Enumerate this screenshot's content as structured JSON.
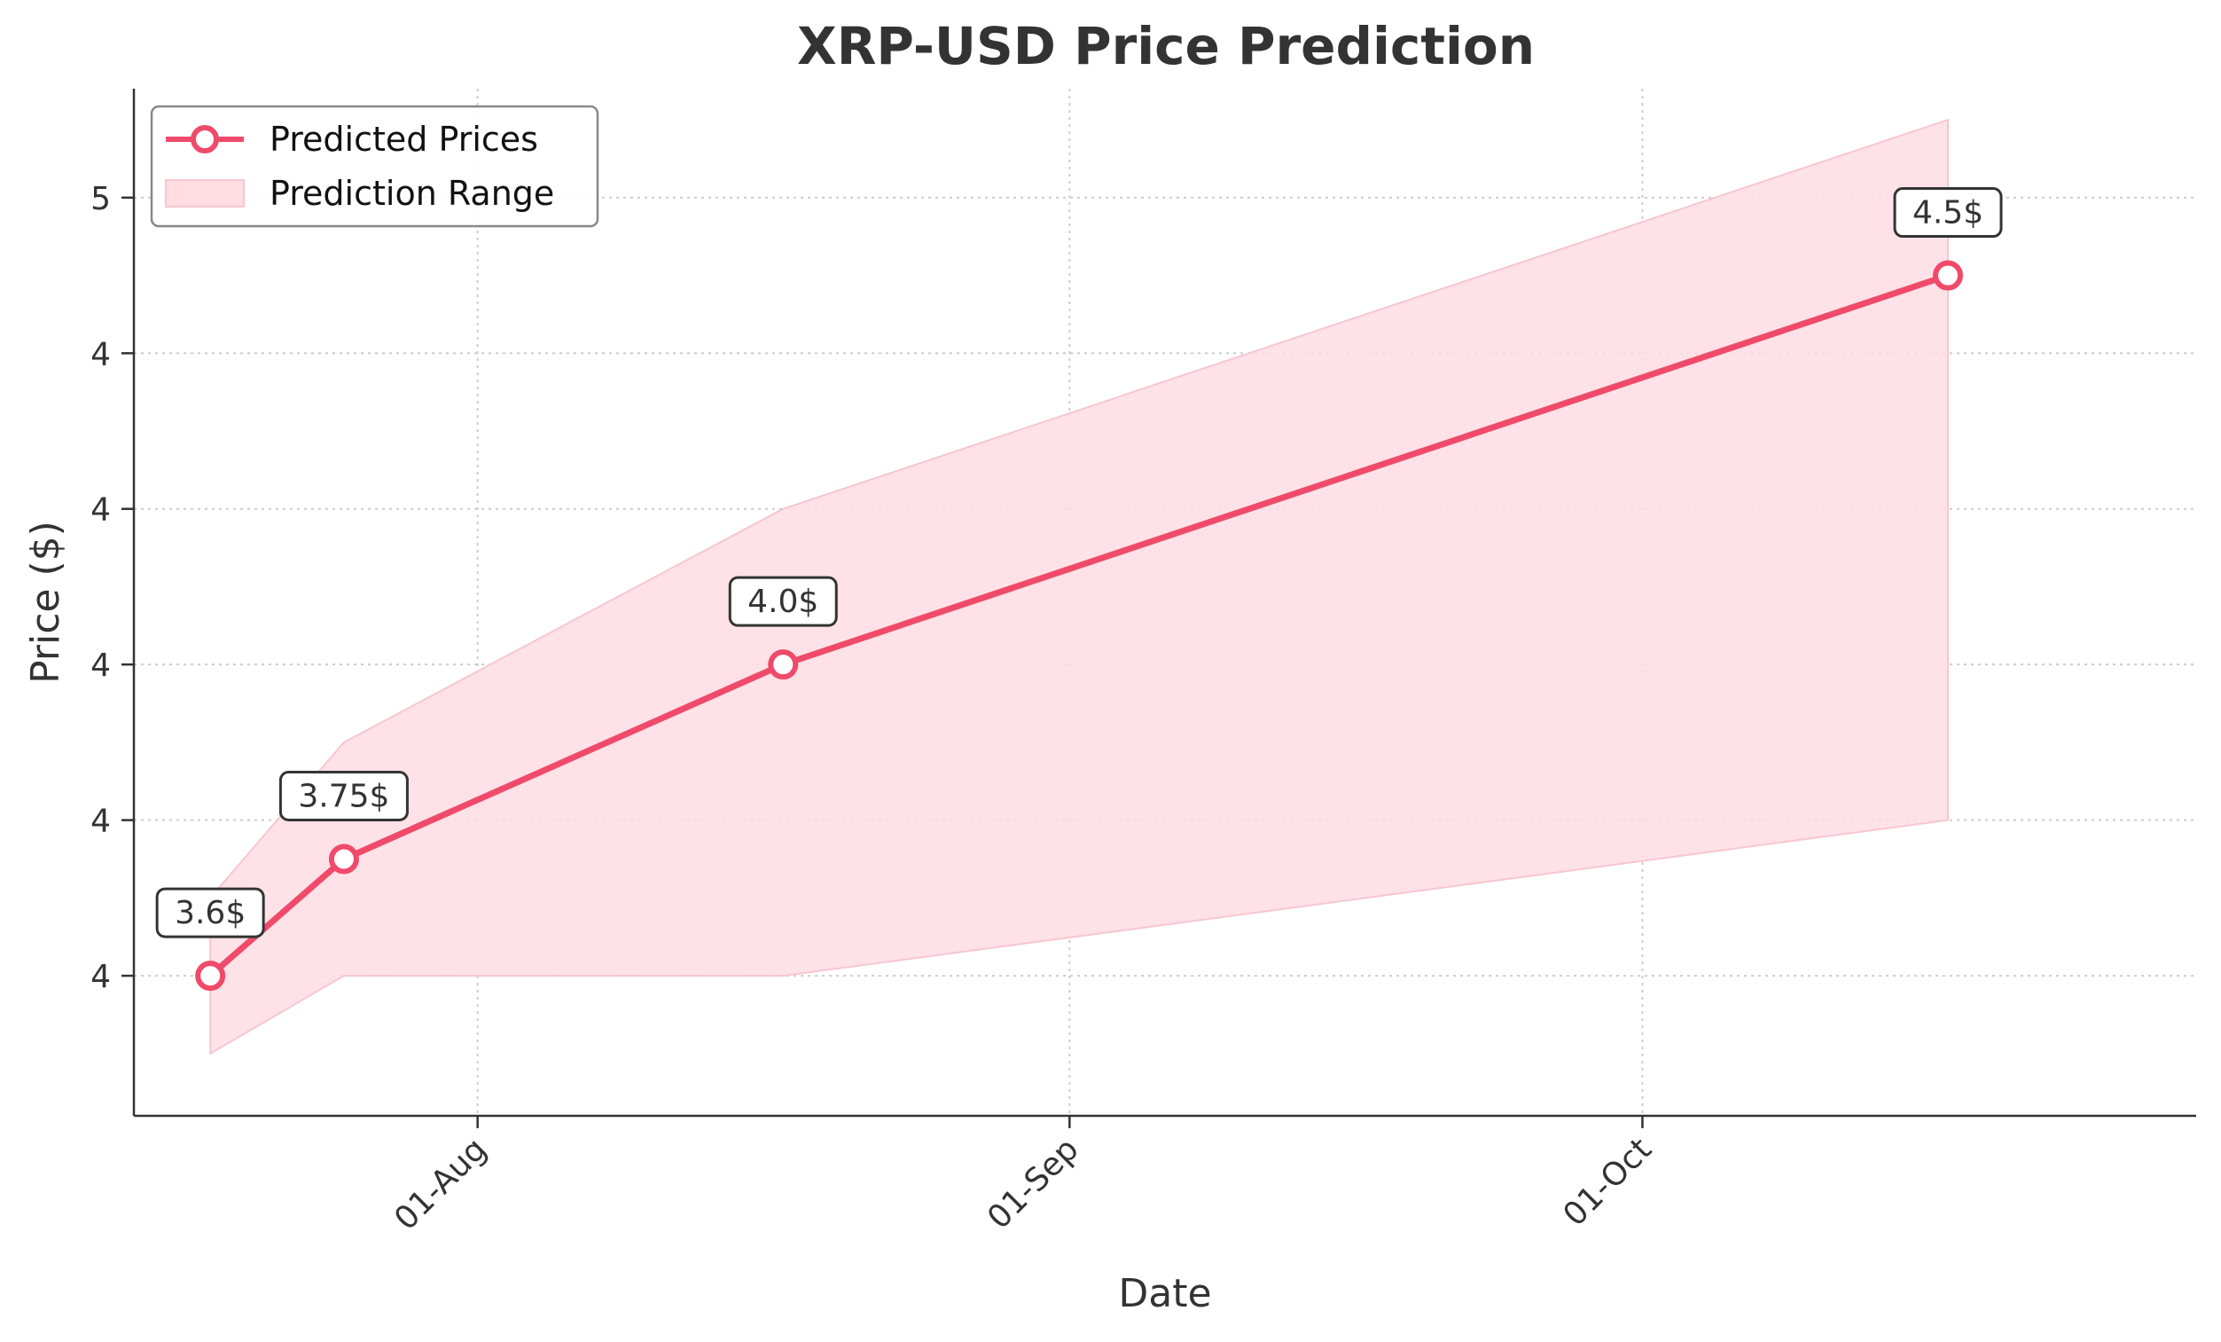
{
  "chart_data": {
    "type": "line",
    "title": "XRP-USD Price Prediction",
    "xlabel": "Date",
    "ylabel": "Price ($)",
    "x_tick_labels": [
      "01-Aug",
      "01-Sep",
      "01-Oct"
    ],
    "x_tick_dates": [
      "2024-08-01",
      "2024-09-01",
      "2024-10-01"
    ],
    "y_tick_labels": [
      "4",
      "4",
      "4",
      "4",
      "4",
      "5"
    ],
    "y_tick_values": [
      3.6,
      3.8,
      4.0,
      4.2,
      4.4,
      4.6
    ],
    "xlim": [
      "2024-07-14",
      "2024-10-30"
    ],
    "ylim": [
      3.42,
      4.74
    ],
    "grid": true,
    "legend_position": "top-left",
    "series": [
      {
        "name": "Predicted Prices",
        "type": "line",
        "color": "#f04a6a",
        "x": [
          "2024-07-18",
          "2024-07-25",
          "2024-08-17",
          "2024-10-17"
        ],
        "y": [
          3.6,
          3.75,
          4.0,
          4.5
        ],
        "labels": [
          "3.6$",
          "3.75$",
          "4.0$",
          "4.5$"
        ]
      },
      {
        "name": "Prediction Range",
        "type": "area",
        "color": "#ffdde3",
        "x": [
          "2024-07-18",
          "2024-07-25",
          "2024-08-17",
          "2024-10-17"
        ],
        "upper": [
          3.7,
          3.9,
          4.2,
          4.7
        ],
        "lower": [
          3.5,
          3.6,
          3.6,
          3.8
        ]
      }
    ]
  }
}
